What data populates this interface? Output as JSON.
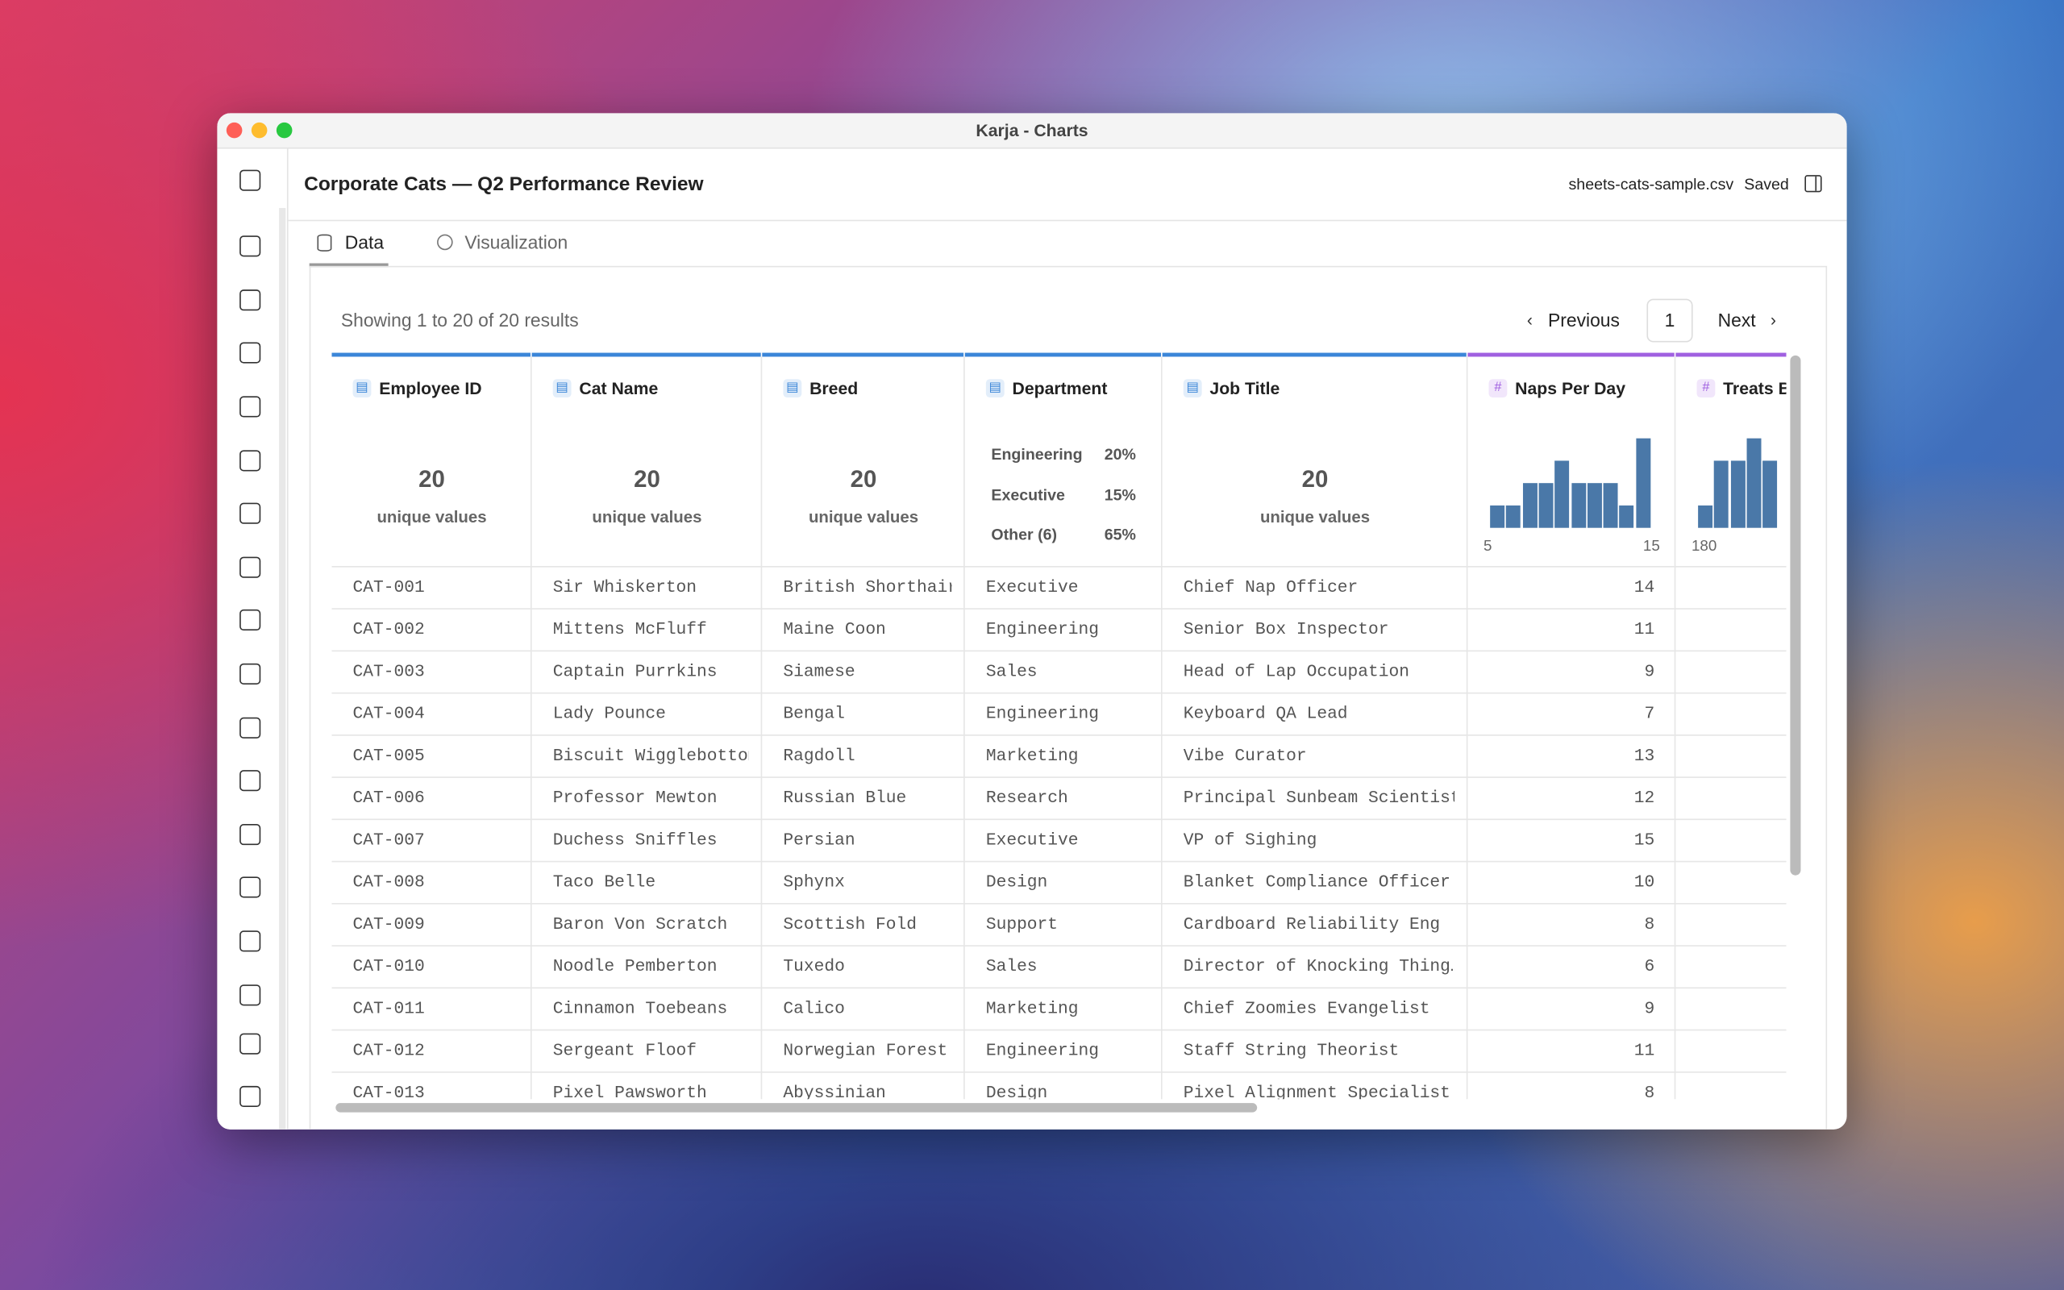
{
  "window": {
    "title": "Karja - Charts"
  },
  "header": {
    "title": "Corporate Cats — Q2 Performance Review",
    "file": "sheets-cats-sample.csv",
    "status": "Saved"
  },
  "tabs": [
    "Data",
    "Visualization"
  ],
  "pagination": {
    "summary": "Showing 1 to 20 of 20 results",
    "previous": "Previous",
    "page": "1",
    "next": "Next"
  },
  "table": {
    "columns": [
      {
        "name": "Employee ID",
        "kind": "text",
        "summary": {
          "count": "20",
          "caption": "unique values"
        }
      },
      {
        "name": "Cat Name",
        "kind": "text",
        "summary": {
          "count": "20",
          "caption": "unique values"
        }
      },
      {
        "name": "Breed",
        "kind": "text",
        "summary": {
          "count": "20",
          "caption": "unique values"
        }
      },
      {
        "name": "Department",
        "kind": "text",
        "summary": {
          "items": [
            {
              "label": "Engineering",
              "share": "20%"
            },
            {
              "label": "Executive",
              "share": "15%"
            },
            {
              "label": "Other (6)",
              "share": "65%"
            }
          ]
        }
      },
      {
        "name": "Job Title",
        "kind": "text",
        "summary": {
          "count": "20",
          "caption": "unique values"
        }
      },
      {
        "name": "Naps Per Day",
        "kind": "number",
        "summary": {
          "histogram": [
            1,
            1,
            2,
            2,
            3,
            2,
            2,
            2,
            1,
            4
          ],
          "min": "5",
          "max": "15"
        }
      },
      {
        "name": "Treats B",
        "kind": "number",
        "summary": {
          "histogram": [
            1,
            3,
            3,
            4,
            3
          ],
          "min": "180"
        }
      }
    ],
    "rows": [
      [
        "CAT-001",
        "Sir Whiskerton",
        "British Shorthair",
        "Executive",
        "Chief Nap Officer",
        "14"
      ],
      [
        "CAT-002",
        "Mittens McFluff",
        "Maine Coon",
        "Engineering",
        "Senior Box Inspector",
        "11"
      ],
      [
        "CAT-003",
        "Captain Purrkins",
        "Siamese",
        "Sales",
        "Head of Lap Occupation",
        "9"
      ],
      [
        "CAT-004",
        "Lady Pounce",
        "Bengal",
        "Engineering",
        "Keyboard QA Lead",
        "7"
      ],
      [
        "CAT-005",
        "Biscuit Wigglebottom",
        "Ragdoll",
        "Marketing",
        "Vibe Curator",
        "13"
      ],
      [
        "CAT-006",
        "Professor Mewton",
        "Russian Blue",
        "Research",
        "Principal Sunbeam Scientist",
        "12"
      ],
      [
        "CAT-007",
        "Duchess Sniffles",
        "Persian",
        "Executive",
        "VP of Sighing",
        "15"
      ],
      [
        "CAT-008",
        "Taco Belle",
        "Sphynx",
        "Design",
        "Blanket Compliance Officer",
        "10"
      ],
      [
        "CAT-009",
        "Baron Von Scratch",
        "Scottish Fold",
        "Support",
        "Cardboard Reliability Eng",
        "8"
      ],
      [
        "CAT-010",
        "Noodle Pemberton",
        "Tuxedo",
        "Sales",
        "Director of Knocking Thing…",
        "6"
      ],
      [
        "CAT-011",
        "Cinnamon Toebeans",
        "Calico",
        "Marketing",
        "Chief Zoomies Evangelist",
        "9"
      ],
      [
        "CAT-012",
        "Sergeant Floof",
        "Norwegian Forest",
        "Engineering",
        "Staff String Theorist",
        "11"
      ],
      [
        "CAT-013",
        "Pixel Pawsworth",
        "Abyssinian",
        "Design",
        "Pixel Alignment Specialist",
        "8"
      ]
    ]
  }
}
